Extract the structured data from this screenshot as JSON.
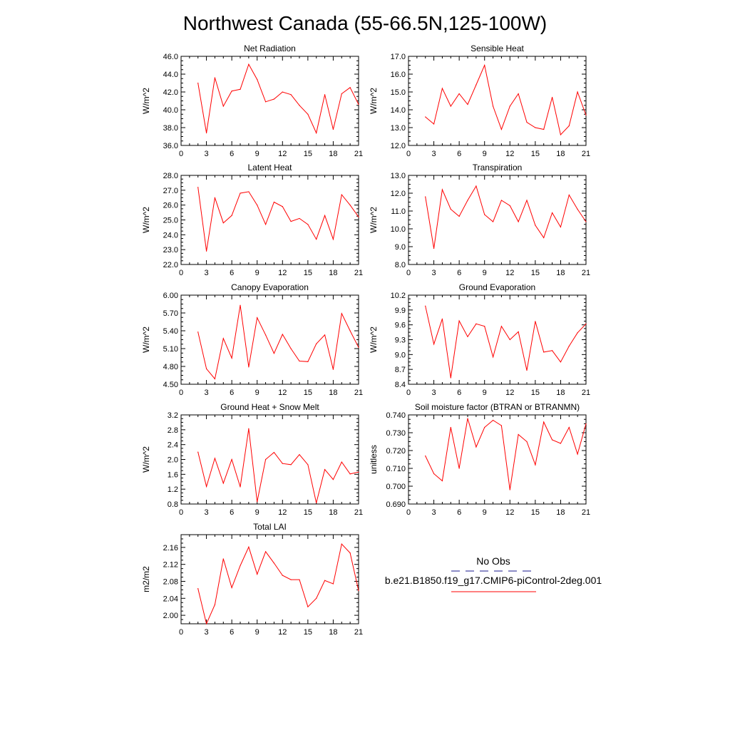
{
  "page_title": "Northwest Canada (55-66.5N,125-100W)",
  "legend": {
    "items": [
      {
        "label": "No Obs",
        "color": "#1a1a8c",
        "dash": "dashed"
      },
      {
        "label": "b.e21.B1850.f19_g17.CMIP6-piControl-2deg.001",
        "color": "#ff0000",
        "dash": "solid"
      }
    ]
  },
  "chart_data": [
    {
      "type": "line",
      "title": "Net Radiation",
      "ylabel": "W/m^2",
      "xlabel": "",
      "xlim": [
        0,
        21
      ],
      "ylim": [
        36.0,
        46.0
      ],
      "xticks": [
        0,
        3,
        6,
        9,
        12,
        15,
        18,
        21
      ],
      "yticks": [
        "36.0",
        "38.0",
        "40.0",
        "42.0",
        "44.0",
        "46.0"
      ],
      "x": [
        2,
        3,
        4,
        5,
        6,
        7,
        8,
        9,
        10,
        11,
        12,
        13,
        14,
        15,
        16,
        17,
        18,
        19,
        20,
        21
      ],
      "series": [
        {
          "color": "#ff0000",
          "values": [
            43.0,
            37.4,
            43.6,
            40.4,
            42.1,
            42.3,
            45.1,
            43.4,
            40.9,
            41.2,
            42.0,
            41.7,
            40.5,
            39.5,
            37.4,
            41.7,
            37.8,
            41.8,
            42.5,
            40.6
          ]
        }
      ]
    },
    {
      "type": "line",
      "title": "Sensible Heat",
      "ylabel": "W/m^2",
      "xlabel": "",
      "xlim": [
        0,
        21
      ],
      "ylim": [
        12.0,
        17.0
      ],
      "xticks": [
        0,
        3,
        6,
        9,
        12,
        15,
        18,
        21
      ],
      "yticks": [
        "12.0",
        "13.0",
        "14.0",
        "15.0",
        "16.0",
        "17.0"
      ],
      "x": [
        2,
        3,
        4,
        5,
        6,
        7,
        8,
        9,
        10,
        11,
        12,
        13,
        14,
        15,
        16,
        17,
        18,
        19,
        20,
        21
      ],
      "series": [
        {
          "color": "#ff0000",
          "values": [
            13.6,
            13.2,
            15.2,
            14.2,
            14.9,
            14.3,
            15.4,
            16.5,
            14.2,
            12.9,
            14.2,
            14.9,
            13.3,
            13.0,
            12.9,
            14.7,
            12.6,
            13.1,
            15.0,
            13.7
          ]
        }
      ]
    },
    {
      "type": "line",
      "title": "Latent Heat",
      "ylabel": "W/m^2",
      "xlabel": "",
      "xlim": [
        0,
        21
      ],
      "ylim": [
        22.0,
        28.0
      ],
      "xticks": [
        0,
        3,
        6,
        9,
        12,
        15,
        18,
        21
      ],
      "yticks": [
        "22.0",
        "23.0",
        "24.0",
        "25.0",
        "26.0",
        "27.0",
        "28.0"
      ],
      "x": [
        2,
        3,
        4,
        5,
        6,
        7,
        8,
        9,
        10,
        11,
        12,
        13,
        14,
        15,
        16,
        17,
        18,
        19,
        20,
        21
      ],
      "series": [
        {
          "color": "#ff0000",
          "values": [
            27.2,
            22.9,
            26.5,
            24.8,
            25.3,
            26.8,
            26.9,
            26.0,
            24.7,
            26.2,
            25.9,
            24.9,
            25.1,
            24.7,
            23.7,
            25.3,
            23.7,
            26.7,
            26.0,
            25.2
          ]
        }
      ]
    },
    {
      "type": "line",
      "title": "Transpiration",
      "ylabel": "W/m^2",
      "xlabel": "",
      "xlim": [
        0,
        21
      ],
      "ylim": [
        8.0,
        13.0
      ],
      "xticks": [
        0,
        3,
        6,
        9,
        12,
        15,
        18,
        21
      ],
      "yticks": [
        "8.0",
        "9.0",
        "10.0",
        "11.0",
        "12.0",
        "13.0"
      ],
      "x": [
        2,
        3,
        4,
        5,
        6,
        7,
        8,
        9,
        10,
        11,
        12,
        13,
        14,
        15,
        16,
        17,
        18,
        19,
        20,
        21
      ],
      "series": [
        {
          "color": "#ff0000",
          "values": [
            11.8,
            8.9,
            12.2,
            11.1,
            10.7,
            11.6,
            12.4,
            10.8,
            10.4,
            11.6,
            11.3,
            10.4,
            11.6,
            10.2,
            9.5,
            10.9,
            10.1,
            11.9,
            11.1,
            10.4
          ]
        }
      ]
    },
    {
      "type": "line",
      "title": "Canopy Evaporation",
      "ylabel": "W/m^2",
      "xlabel": "",
      "xlim": [
        0,
        21
      ],
      "ylim": [
        4.5,
        6.0
      ],
      "xticks": [
        0,
        3,
        6,
        9,
        12,
        15,
        18,
        21
      ],
      "yticks": [
        "4.50",
        "4.80",
        "5.10",
        "5.40",
        "5.70",
        "6.00"
      ],
      "x": [
        2,
        3,
        4,
        5,
        6,
        7,
        8,
        9,
        10,
        11,
        12,
        13,
        14,
        15,
        16,
        17,
        18,
        19,
        20,
        21
      ],
      "series": [
        {
          "color": "#ff0000",
          "values": [
            5.38,
            4.76,
            4.59,
            5.27,
            4.94,
            5.83,
            4.79,
            5.62,
            5.33,
            5.02,
            5.34,
            5.1,
            4.89,
            4.88,
            5.18,
            5.33,
            4.75,
            5.69,
            5.4,
            5.12
          ]
        }
      ]
    },
    {
      "type": "line",
      "title": "Ground Evaporation",
      "ylabel": "W/m^2",
      "xlabel": "",
      "xlim": [
        0,
        21
      ],
      "ylim": [
        8.4,
        10.2
      ],
      "xticks": [
        0,
        3,
        6,
        9,
        12,
        15,
        18,
        21
      ],
      "yticks": [
        "8.4",
        "8.7",
        "9.0",
        "9.3",
        "9.6",
        "9.9",
        "10.2"
      ],
      "x": [
        2,
        3,
        4,
        5,
        6,
        7,
        8,
        9,
        10,
        11,
        12,
        13,
        14,
        15,
        16,
        17,
        18,
        19,
        20,
        21
      ],
      "series": [
        {
          "color": "#ff0000",
          "values": [
            9.98,
            9.21,
            9.72,
            8.53,
            9.68,
            9.36,
            9.62,
            9.57,
            8.95,
            9.57,
            9.3,
            9.46,
            8.68,
            9.67,
            9.05,
            9.08,
            8.85,
            9.17,
            9.44,
            9.62
          ]
        }
      ]
    },
    {
      "type": "line",
      "title": "Ground Heat + Snow Melt",
      "ylabel": "W/m^2",
      "xlabel": "",
      "xlim": [
        0,
        21
      ],
      "ylim": [
        0.8,
        3.2
      ],
      "xticks": [
        0,
        3,
        6,
        9,
        12,
        15,
        18,
        21
      ],
      "yticks": [
        "0.8",
        "1.2",
        "1.6",
        "2.0",
        "2.4",
        "2.8",
        "3.2"
      ],
      "x": [
        2,
        3,
        4,
        5,
        6,
        7,
        8,
        9,
        10,
        11,
        12,
        13,
        14,
        15,
        16,
        17,
        18,
        19,
        20,
        21
      ],
      "series": [
        {
          "color": "#ff0000",
          "values": [
            2.2,
            1.27,
            2.03,
            1.36,
            2.0,
            1.26,
            2.83,
            0.86,
            2.0,
            2.19,
            1.89,
            1.86,
            2.13,
            1.86,
            0.83,
            1.73,
            1.46,
            1.93,
            1.61,
            1.66
          ]
        }
      ]
    },
    {
      "type": "line",
      "title": "Soil moisture factor (BTRAN or BTRANMN)",
      "ylabel": "unitless",
      "xlabel": "",
      "xlim": [
        0,
        21
      ],
      "ylim": [
        0.69,
        0.74
      ],
      "xticks": [
        0,
        3,
        6,
        9,
        12,
        15,
        18,
        21
      ],
      "yticks": [
        "0.690",
        "0.700",
        "0.710",
        "0.720",
        "0.730",
        "0.740"
      ],
      "x": [
        2,
        3,
        4,
        5,
        6,
        7,
        8,
        9,
        10,
        11,
        12,
        13,
        14,
        15,
        16,
        17,
        18,
        19,
        20,
        21
      ],
      "series": [
        {
          "color": "#ff0000",
          "values": [
            0.717,
            0.707,
            0.703,
            0.733,
            0.71,
            0.738,
            0.722,
            0.733,
            0.737,
            0.734,
            0.698,
            0.729,
            0.725,
            0.712,
            0.736,
            0.726,
            0.724,
            0.733,
            0.718,
            0.735
          ]
        }
      ]
    },
    {
      "type": "line",
      "title": "Total LAI",
      "ylabel": "m2/m2",
      "xlabel": "",
      "xlim": [
        0,
        21
      ],
      "ylim": [
        1.98,
        2.19
      ],
      "xticks": [
        0,
        3,
        6,
        9,
        12,
        15,
        18,
        21
      ],
      "yticks": [
        "2.00",
        "2.04",
        "2.08",
        "2.12",
        "2.16"
      ],
      "x": [
        2,
        3,
        4,
        5,
        6,
        7,
        8,
        9,
        10,
        11,
        12,
        13,
        14,
        15,
        16,
        17,
        18,
        19,
        20,
        21
      ],
      "series": [
        {
          "color": "#ff0000",
          "values": [
            2.063,
            1.98,
            2.025,
            2.133,
            2.065,
            2.117,
            2.161,
            2.097,
            2.15,
            2.123,
            2.094,
            2.084,
            2.084,
            2.02,
            2.04,
            2.082,
            2.074,
            2.168,
            2.147,
            2.058
          ]
        }
      ]
    }
  ]
}
